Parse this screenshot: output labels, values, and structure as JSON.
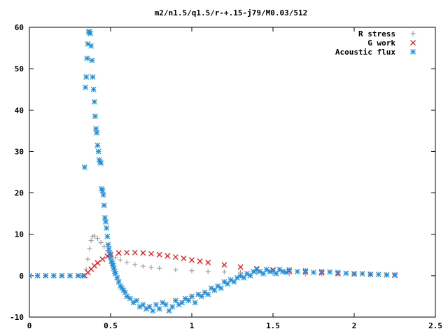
{
  "chart_data": {
    "type": "scatter",
    "title": "m2/n1.5/q1.5/r-+.15-j79/M0.03/512",
    "xlabel": "",
    "ylabel": "",
    "xlim": [
      0,
      2.5
    ],
    "ylim": [
      -10,
      60
    ],
    "xticks": [
      "0",
      "0.5",
      "1",
      "1.5",
      "2",
      "2.5"
    ],
    "yticks": [
      "-10",
      "0",
      "10",
      "20",
      "30",
      "40",
      "50",
      "60"
    ],
    "grid": false,
    "legend_position": "top-right",
    "series": [
      {
        "name": "R stress",
        "marker": "plus",
        "color": "#a0a0a0",
        "x": [
          0.0,
          0.05,
          0.1,
          0.15,
          0.2,
          0.25,
          0.3,
          0.33,
          0.35,
          0.36,
          0.37,
          0.38,
          0.39,
          0.4,
          0.42,
          0.44,
          0.46,
          0.48,
          0.5,
          0.53,
          0.56,
          0.6,
          0.65,
          0.7,
          0.75,
          0.8,
          0.9,
          1.0,
          1.1,
          1.2,
          1.3,
          1.4,
          1.5,
          1.6,
          1.7,
          1.8,
          1.9,
          2.0,
          2.1,
          2.2,
          2.25
        ],
        "y": [
          0,
          0,
          0,
          0,
          0,
          0,
          0,
          0,
          1.5,
          4.0,
          6.5,
          8.5,
          9.5,
          9.6,
          9.0,
          8.0,
          7.0,
          6.0,
          5.2,
          4.4,
          3.8,
          3.2,
          2.7,
          2.3,
          2.0,
          1.8,
          1.4,
          1.2,
          1.0,
          0.9,
          0.8,
          0.7,
          0.6,
          0.5,
          0.4,
          0.4,
          0.3,
          0.3,
          0.2,
          0.2,
          0.2
        ]
      },
      {
        "name": "G work",
        "marker": "cross",
        "color": "#ff0000",
        "x": [
          0.0,
          0.1,
          0.2,
          0.3,
          0.34,
          0.36,
          0.38,
          0.4,
          0.42,
          0.45,
          0.48,
          0.5,
          0.55,
          0.6,
          0.65,
          0.7,
          0.75,
          0.8,
          0.85,
          0.9,
          0.95,
          1.0,
          1.05,
          1.1,
          1.2,
          1.3,
          1.4,
          1.5,
          1.6,
          1.7,
          1.8,
          1.9,
          2.0,
          2.1,
          2.2,
          2.25
        ],
        "y": [
          0,
          0,
          0,
          0,
          0,
          0.8,
          1.6,
          2.4,
          3.1,
          4.0,
          4.7,
          5.1,
          5.5,
          5.6,
          5.6,
          5.5,
          5.3,
          5.1,
          4.8,
          4.5,
          4.2,
          3.8,
          3.5,
          3.2,
          2.6,
          2.1,
          1.7,
          1.4,
          1.1,
          0.9,
          0.7,
          0.5,
          0.4,
          0.3,
          0.2,
          0.1
        ]
      },
      {
        "name": "Acoustic flux",
        "marker": "star",
        "color": "#1f8fe0",
        "x": [
          0.0,
          0.05,
          0.1,
          0.15,
          0.2,
          0.25,
          0.3,
          0.33,
          0.34,
          0.345,
          0.35,
          0.355,
          0.36,
          0.365,
          0.37,
          0.375,
          0.38,
          0.385,
          0.39,
          0.395,
          0.4,
          0.405,
          0.41,
          0.415,
          0.42,
          0.425,
          0.43,
          0.435,
          0.44,
          0.445,
          0.45,
          0.455,
          0.46,
          0.465,
          0.47,
          0.475,
          0.48,
          0.485,
          0.49,
          0.495,
          0.5,
          0.505,
          0.51,
          0.515,
          0.52,
          0.525,
          0.53,
          0.54,
          0.55,
          0.56,
          0.57,
          0.58,
          0.59,
          0.6,
          0.62,
          0.64,
          0.66,
          0.68,
          0.7,
          0.72,
          0.74,
          0.76,
          0.78,
          0.8,
          0.82,
          0.84,
          0.86,
          0.88,
          0.9,
          0.92,
          0.94,
          0.96,
          0.98,
          1.0,
          1.02,
          1.04,
          1.06,
          1.08,
          1.1,
          1.12,
          1.14,
          1.16,
          1.18,
          1.2,
          1.22,
          1.24,
          1.26,
          1.28,
          1.3,
          1.32,
          1.34,
          1.36,
          1.38,
          1.4,
          1.42,
          1.44,
          1.46,
          1.48,
          1.5,
          1.52,
          1.54,
          1.56,
          1.58,
          1.6,
          1.65,
          1.7,
          1.75,
          1.8,
          1.85,
          1.9,
          1.95,
          2.0,
          2.05,
          2.1,
          2.15,
          2.2,
          2.25
        ],
        "y": [
          0,
          0,
          0,
          0,
          0,
          0,
          0,
          0,
          26.2,
          45.5,
          48.0,
          52.5,
          56.0,
          58.8,
          59.0,
          58.5,
          55.5,
          52.0,
          48.0,
          45.0,
          42.0,
          38.5,
          35.5,
          34.5,
          31.5,
          30.0,
          28.0,
          27.5,
          27.2,
          21.0,
          20.5,
          19.5,
          17.0,
          14.0,
          13.0,
          11.5,
          9.5,
          7.5,
          6.5,
          5.5,
          4.5,
          3.5,
          3.0,
          2.5,
          1.8,
          1.0,
          0.5,
          -0.5,
          -1.5,
          -2.5,
          -3.0,
          -3.5,
          -4.0,
          -5.0,
          -5.5,
          -6.5,
          -6.0,
          -7.5,
          -7.0,
          -8.0,
          -7.5,
          -8.5,
          -7.0,
          -8.0,
          -6.5,
          -7.0,
          -8.5,
          -7.5,
          -6.0,
          -7.0,
          -6.5,
          -5.5,
          -6.0,
          -5.0,
          -6.5,
          -4.5,
          -5.0,
          -4.0,
          -4.5,
          -3.0,
          -3.5,
          -2.5,
          -3.0,
          -1.5,
          -2.0,
          -1.0,
          -1.5,
          -0.5,
          0.0,
          -0.5,
          0.5,
          0.0,
          1.0,
          1.5,
          1.0,
          0.5,
          1.5,
          1.0,
          1.2,
          0.5,
          1.5,
          1.0,
          0.8,
          1.4,
          1.0,
          1.2,
          0.8,
          1.0,
          0.9,
          0.8,
          0.6,
          0.5,
          0.5,
          0.4,
          0.3,
          0.2,
          0.2
        ]
      }
    ]
  }
}
